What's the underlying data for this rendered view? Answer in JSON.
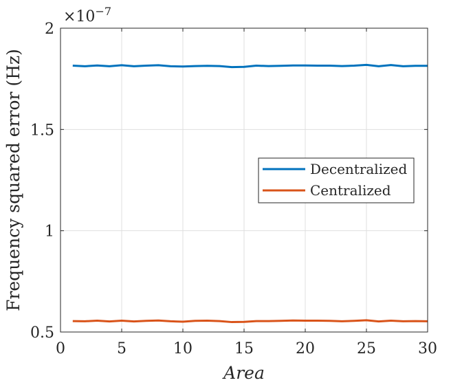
{
  "chart_data": {
    "type": "line",
    "title": "",
    "xlabel": "Area",
    "ylabel": "Frequency squared error (Hz)",
    "y_multiplier_label": {
      "base": "×10",
      "exponent": "−7"
    },
    "xlim": [
      0,
      30
    ],
    "ylim": [
      0.5,
      2
    ],
    "x_ticks": [
      0,
      5,
      10,
      15,
      20,
      25,
      30
    ],
    "x_tick_labels": [
      "0",
      "5",
      "10",
      "15",
      "20",
      "25",
      "30"
    ],
    "y_ticks": [
      0.5,
      1,
      1.5,
      2
    ],
    "y_tick_labels": [
      "0.5",
      "1",
      "1.5",
      "2"
    ],
    "grid": true,
    "legend_position": "right-center",
    "x": [
      1,
      2,
      3,
      4,
      5,
      6,
      7,
      8,
      9,
      10,
      11,
      12,
      13,
      14,
      15,
      16,
      17,
      18,
      19,
      20,
      21,
      22,
      23,
      24,
      25,
      26,
      27,
      28,
      29,
      30
    ],
    "series": [
      {
        "name": "Decentralized",
        "color": "#0072BD",
        "values": [
          1.815,
          1.812,
          1.816,
          1.812,
          1.817,
          1.812,
          1.815,
          1.817,
          1.812,
          1.811,
          1.813,
          1.814,
          1.813,
          1.808,
          1.809,
          1.815,
          1.813,
          1.814,
          1.816,
          1.816,
          1.815,
          1.815,
          1.813,
          1.815,
          1.819,
          1.812,
          1.818,
          1.812,
          1.814,
          1.814
        ]
      },
      {
        "name": "Centralized",
        "color": "#D95319",
        "values": [
          0.554,
          0.553,
          0.556,
          0.552,
          0.556,
          0.552,
          0.555,
          0.557,
          0.553,
          0.551,
          0.555,
          0.556,
          0.554,
          0.549,
          0.55,
          0.554,
          0.554,
          0.555,
          0.557,
          0.556,
          0.556,
          0.555,
          0.553,
          0.555,
          0.558,
          0.552,
          0.556,
          0.553,
          0.554,
          0.553
        ]
      }
    ]
  }
}
